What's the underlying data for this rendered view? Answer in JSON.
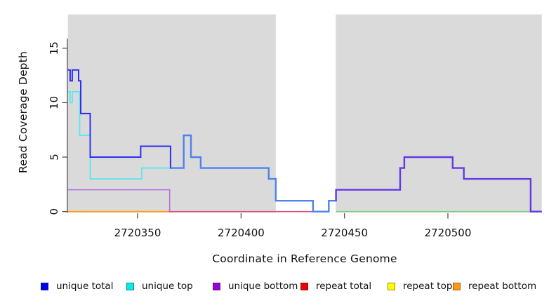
{
  "figure": {
    "background": "#ffffff",
    "band_color": "#DADADA"
  },
  "chart_data": {
    "type": "line",
    "subtype": "step-coverage-plot",
    "title": "",
    "xlabel": "Coordinate in Reference Genome",
    "ylabel": "Read Coverage Depth",
    "xlim": [
      2720316.3,
      2720545.4
    ],
    "ylim": [
      0,
      18.1
    ],
    "x_ticks": [
      2720350,
      2720400,
      2720450,
      2720500
    ],
    "y_ticks": [
      0,
      5,
      10,
      15
    ],
    "grid": false,
    "legend_position": "bottom",
    "shaded_regions": [
      {
        "from": 2720316.3,
        "to": 2720416.8,
        "color": "#DADADA"
      },
      {
        "from": 2720445.8,
        "to": 2720545.4,
        "color": "#DADADA"
      }
    ],
    "gap_region": {
      "from": 2720416.8,
      "to": 2720445.8
    },
    "lines": [
      {
        "name": "unique-bottom",
        "series": "unique bottom",
        "color": "#B070E0",
        "width": 1.6,
        "steps": [
          [
            2720316.3,
            2
          ],
          [
            2720365.5,
            0
          ]
        ],
        "end": 2720365.7
      },
      {
        "name": "repeat-bottom-zero",
        "series": "repeat bottom",
        "color": "#FFA020",
        "width": 1.8,
        "steps": [
          [
            2720316.3,
            0
          ]
        ],
        "end": 2720364.9
      },
      {
        "name": "repeat-total-zero",
        "series": "repeat total",
        "color": "#D64E87",
        "width": 1.6,
        "steps": [
          [
            2720364.9,
            0
          ]
        ],
        "end": 2720434.8
      },
      {
        "name": "top-strand-zero",
        "series": "unique top / repeat top",
        "color": "#7FCC7F",
        "width": 1.6,
        "steps": [
          [
            2720445.8,
            0
          ]
        ],
        "end": 2720545.4
      },
      {
        "name": "unique-top",
        "series": "unique top",
        "color": "#55E6EE",
        "width": 1.7,
        "steps": [
          [
            2720316.3,
            11
          ],
          [
            2720317.4,
            10
          ],
          [
            2720318.4,
            11
          ],
          [
            2720322.0,
            7
          ],
          [
            2720327.1,
            3
          ],
          [
            2720352.0,
            4
          ]
        ],
        "end": 2720365.9
      },
      {
        "name": "unique-total-left",
        "series": "unique total",
        "color": "#2E2EF0",
        "width": 2.0,
        "steps": [
          [
            2720316.3,
            13
          ],
          [
            2720317.4,
            12
          ],
          [
            2720318.4,
            13
          ],
          [
            2720321.5,
            12
          ],
          [
            2720322.5,
            9
          ],
          [
            2720327.1,
            5
          ],
          [
            2720351.5,
            6
          ],
          [
            2720365.9,
            4
          ]
        ],
        "end": 2720366.0
      },
      {
        "name": "unique-total-mid",
        "series": "unique total + unique top",
        "color": "#4D82EC",
        "width": 2.4,
        "steps": [
          [
            2720365.9,
            4
          ],
          [
            2720372.3,
            7
          ],
          [
            2720375.8,
            5
          ],
          [
            2720380.5,
            4
          ],
          [
            2720413.4,
            3
          ],
          [
            2720416.8,
            1
          ],
          [
            2720434.8,
            0
          ],
          [
            2720442.4,
            1
          ]
        ],
        "end": 2720445.8
      },
      {
        "name": "unique-total-right",
        "series": "unique total + unique bottom",
        "color": "#6438E4",
        "width": 2.4,
        "steps": [
          [
            2720445.8,
            1
          ],
          [
            2720445.9,
            2
          ],
          [
            2720476.9,
            4
          ],
          [
            2720478.9,
            5
          ],
          [
            2720502.3,
            4
          ],
          [
            2720507.7,
            3
          ],
          [
            2720540.0,
            0
          ]
        ],
        "end": 2720545.4
      }
    ]
  },
  "legend": {
    "items": [
      {
        "label": "unique total",
        "color": "#0000EE"
      },
      {
        "label": "unique top",
        "color": "#00EEEE"
      },
      {
        "label": "unique bottom",
        "color": "#9A00D3"
      },
      {
        "label": "repeat total",
        "color": "#EE0000"
      },
      {
        "label": "repeat top",
        "color": "#FFFF00"
      },
      {
        "label": "repeat bottom",
        "color": "#FF9912"
      }
    ]
  }
}
